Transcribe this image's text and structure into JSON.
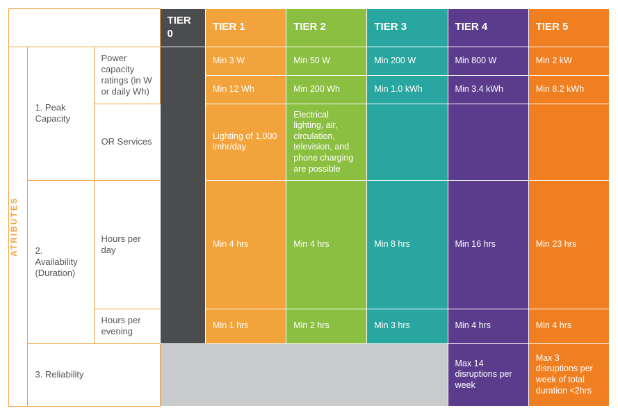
{
  "sidebar_label": "ATRIBUTES",
  "colors": {
    "tier0": "#4a4c4e",
    "tier1": "#f2a33c",
    "tier2": "#8bbf41",
    "tier3": "#2aa6a0",
    "tier4": "#5b3c8c",
    "tier5": "#f07f22",
    "grey": "#c9cacb",
    "border": "#f2a33c"
  },
  "headers": {
    "tier0": "TIER 0",
    "tier1": "TIER 1",
    "tier2": "TIER 2",
    "tier3": "TIER 3",
    "tier4": "TIER 4",
    "tier5": "TIER 5"
  },
  "attrs": {
    "peak_label": "1. Peak Capacity",
    "peak_sub1": "Power capacity ratings (in W or daily Wh)",
    "peak_sub2": "OR Services",
    "avail_label": "2. Availability (Duration)",
    "avail_sub1": "Hours per day",
    "avail_sub2": "Hours per evening",
    "rel_label": "3. Reliability"
  },
  "cells": {
    "w_t1": "Min 3 W",
    "w_t2": "Min 50 W",
    "w_t3": "Min 200 W",
    "w_t4": "Min 800 W",
    "w_t5": "Min 2 kW",
    "wh_t1": "Min 12 Wh",
    "wh_t2": "Min 200 Wh",
    "wh_t3": "Min 1.0 kWh",
    "wh_t4": "Min 3.4 kWh",
    "wh_t5": "Min 8.2 kWh",
    "srv_t1": "Lighting of 1,000 lmhr/day",
    "srv_t2": "Electrical lighting, air, circulation, television, and phone charging are possible",
    "hd_t1": "Min 4 hrs",
    "hd_t2": "Min 4 hrs",
    "hd_t3": "Min 8 hrs",
    "hd_t4": "Min 16 hrs",
    "hd_t5": "Min 23 hrs",
    "he_t1": "Min 1 hrs",
    "he_t2": "Min 2 hrs",
    "he_t3": "Min 3 hrs",
    "he_t4": "Min 4 hrs",
    "he_t5": "Min 4 hrs",
    "rel_t4": "Max 14 disruptions per week",
    "rel_t5": "Max 3 disruptions per week of total duration <2hrs"
  },
  "col_widths": {
    "side": "26px",
    "attr": "90px",
    "sub": "90px",
    "tier0": "62px",
    "tier": "110px"
  }
}
